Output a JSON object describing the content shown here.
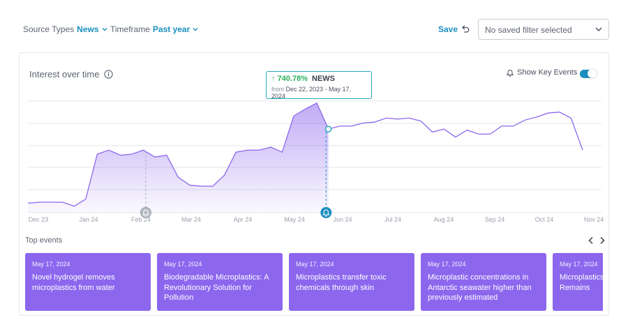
{
  "filters": {
    "source_types": {
      "label": "Source Types",
      "value": "News"
    },
    "timeframe": {
      "label": "Timeframe",
      "value": "Past year"
    },
    "save_label": "Save",
    "saved_filter_placeholder": "No saved filter selected"
  },
  "chart": {
    "title": "Interest over time",
    "key_events_label": "Show Key Events",
    "key_events_enabled": true,
    "accent_color": "#8c67ee",
    "tooltip": {
      "change": "740.78%",
      "source": "NEWS",
      "from_label": "from",
      "range": "Dec 22, 2023 - May 17, 2024"
    }
  },
  "chart_data": {
    "type": "area",
    "title": "Interest over time",
    "x_ticks": [
      "Dec 23",
      "Jan 24",
      "Feb 24",
      "Mar 24",
      "Apr 24",
      "May 24",
      "Jun 24",
      "Jul 24",
      "Aug 24",
      "Sep 24",
      "Oct 24",
      "Nov 24"
    ],
    "x": [
      0,
      1,
      2,
      3,
      4,
      5,
      6,
      7,
      8,
      9,
      10,
      11,
      12,
      13,
      14,
      15,
      16,
      17,
      18,
      19,
      20,
      21,
      22,
      23,
      24,
      25,
      26,
      27,
      28,
      29,
      30,
      31,
      32,
      33,
      34,
      35,
      36,
      37,
      38,
      39,
      40,
      41,
      42,
      43,
      44,
      45,
      46,
      47,
      48
    ],
    "values": [
      8,
      9,
      9,
      9,
      5,
      12,
      57,
      61,
      56,
      57,
      61,
      54,
      56,
      34,
      26,
      25,
      25,
      36,
      59,
      61,
      61,
      64,
      59,
      95,
      102,
      108,
      82,
      85,
      85,
      88,
      89,
      93,
      92,
      93,
      90,
      79,
      82,
      74,
      81,
      77,
      77,
      85,
      85,
      91,
      94,
      98,
      99,
      93,
      61
    ],
    "ylim": [
      0,
      110
    ],
    "highlight_end_index": 26,
    "grid": true,
    "key_event_markers": [
      {
        "x": 10.2,
        "icon": "bell",
        "active": false
      },
      {
        "x": 25.8,
        "icon": "bell",
        "active": true
      }
    ]
  },
  "top_events": {
    "label": "Top events",
    "items": [
      {
        "date": "May 17, 2024",
        "title": "Novel hydrogel removes microplastics from water"
      },
      {
        "date": "May 17, 2024",
        "title": "Biodegradable Microplastics: A Revolutionary Solution for Pollution"
      },
      {
        "date": "May 17, 2024",
        "title": "Microplastics transfer toxic chemicals through skin"
      },
      {
        "date": "May 17, 2024",
        "title": "Microplastic concentrations in Antarctic seawater higher than previously estimated"
      },
      {
        "date": "May 17, 2024",
        "title": "Microplastics Historical Ar Remains"
      }
    ]
  }
}
